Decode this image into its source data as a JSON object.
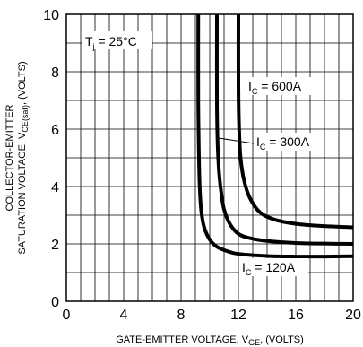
{
  "chart_data": {
    "type": "line",
    "xlabel": {
      "main": "GATE-EMITTER VOLTAGE, V",
      "sub": "GE",
      "tail": ", (VOLTS)"
    },
    "ylabel": {
      "line1": "COLLECTOR-EMITTER",
      "line2_main": "SATURATION VOLTAGE, V",
      "line2_sub": "CE(sat)",
      "line2_tail": ", (VOLTS)"
    },
    "xlim": [
      0,
      20
    ],
    "ylim": [
      0,
      10
    ],
    "xticks": [
      "0",
      "4",
      "8",
      "12",
      "16",
      "20"
    ],
    "yticks": [
      "0",
      "2",
      "4",
      "6",
      "8",
      "10"
    ],
    "grid": true,
    "condition": {
      "main": "T",
      "sub": "j",
      "tail": " = 25°C"
    },
    "series": [
      {
        "name": "I_C = 120A",
        "label": {
          "main": "I",
          "sub": "C",
          "tail": " = 120A"
        },
        "x": [
          9.2,
          9.2,
          9.25,
          9.3,
          9.4,
          9.6,
          10.0,
          10.5,
          11.2,
          12.0,
          14.0,
          16.0,
          18.0,
          20.0
        ],
        "y": [
          10.0,
          7.0,
          5.0,
          4.0,
          3.2,
          2.6,
          2.15,
          1.9,
          1.75,
          1.65,
          1.58,
          1.56,
          1.56,
          1.57
        ]
      },
      {
        "name": "I_C = 300A",
        "label": {
          "main": "I",
          "sub": "C",
          "tail": " = 300A"
        },
        "x": [
          10.5,
          10.5,
          10.55,
          10.65,
          10.8,
          11.0,
          11.4,
          12.0,
          12.8,
          14.0,
          16.0,
          18.0,
          20.0
        ],
        "y": [
          10.0,
          7.0,
          5.5,
          4.5,
          3.8,
          3.2,
          2.7,
          2.35,
          2.2,
          2.1,
          2.03,
          2.01,
          2.0
        ]
      },
      {
        "name": "I_C = 600A",
        "label": {
          "main": "I",
          "sub": "C",
          "tail": " = 600A"
        },
        "x": [
          12.0,
          12.0,
          12.05,
          12.15,
          12.4,
          12.8,
          13.5,
          14.5,
          16.0,
          18.0,
          20.0
        ],
        "y": [
          10.0,
          7.5,
          6.0,
          5.0,
          4.2,
          3.6,
          3.1,
          2.85,
          2.7,
          2.62,
          2.58
        ]
      }
    ]
  }
}
